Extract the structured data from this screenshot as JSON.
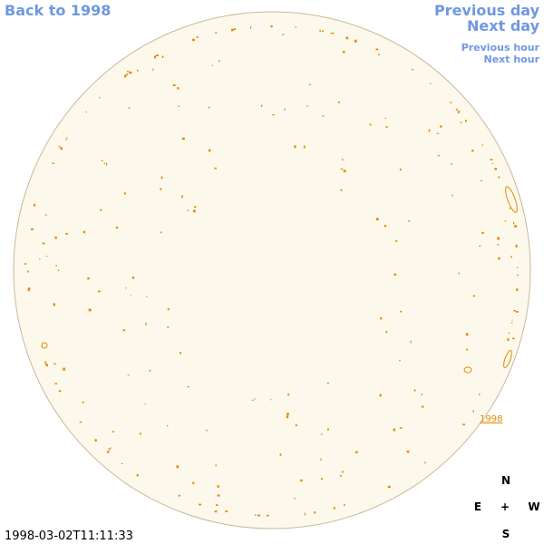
{
  "nav": {
    "back": "Back to 1998",
    "previous_day": "Previous day",
    "next_day": "Next day",
    "previous_hour": "Previous hour",
    "next_hour": "Next hour"
  },
  "disk_label": "1998",
  "compass": {
    "north": "N",
    "east": "E",
    "center": "+",
    "west": "W",
    "south": "S"
  },
  "timestamp": "1998-03-02T11:11:33"
}
